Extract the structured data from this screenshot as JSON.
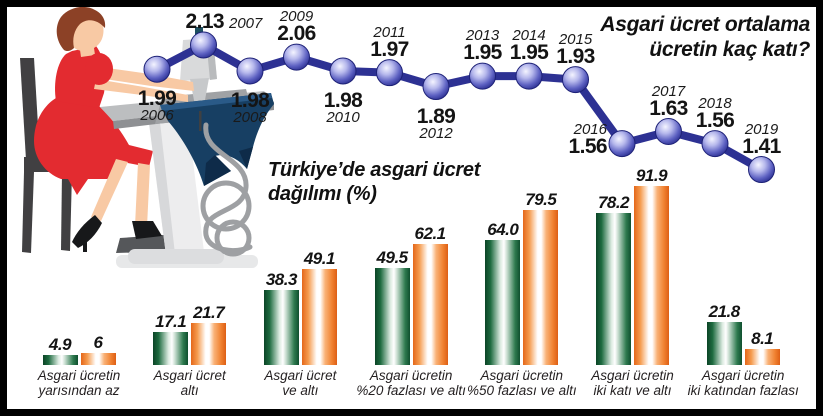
{
  "chart_data": [
    {
      "type": "line",
      "title": "Asgari ücret ortalama ücretin kaç katı?",
      "title_lines": [
        "Asgari ücret ortalama",
        "ücretin kaç katı?"
      ],
      "x": [
        "2006",
        "2007",
        "2008",
        "2009",
        "2010",
        "2011",
        "2012",
        "2013",
        "2014",
        "2015",
        "2016",
        "2017",
        "2018",
        "2019"
      ],
      "values": [
        1.99,
        2.13,
        1.98,
        2.06,
        1.98,
        1.97,
        1.89,
        1.95,
        1.95,
        1.93,
        1.56,
        1.63,
        1.56,
        1.41
      ],
      "labels": [
        "1.99",
        "2.13",
        "1.98",
        "2.06",
        "1.98",
        "1.97",
        "1.89",
        "1.95",
        "1.95",
        "1.93",
        "1.56",
        "1.63",
        "1.56",
        "1.41"
      ],
      "label_positions": [
        "below",
        "inline-above",
        "below",
        "above",
        "below",
        "above",
        "below",
        "above",
        "above",
        "above",
        "left",
        "above",
        "above",
        "above"
      ],
      "ylim": [
        1.3,
        2.2
      ],
      "grid": false,
      "legend_position": "none",
      "line_color": "#2d3193",
      "marker": "sphere"
    },
    {
      "type": "bar",
      "title": "Türkiye’de asgari ücret dağılımı (%)",
      "title_lines": [
        "Türkiye’de asgari ücret",
        "dağılımı (%)"
      ],
      "categories": [
        [
          "Asgari ücretin",
          "yarısından az"
        ],
        [
          "Asgari ücret",
          "altı"
        ],
        [
          "Asgari ücret",
          "ve altı"
        ],
        [
          "Asgari ücretin",
          "%20 fazlası ve altı"
        ],
        [
          "Asgari ücretin",
          "%50 fazlası ve altı"
        ],
        [
          "Asgari ücretin",
          "iki katı ve altı"
        ],
        [
          "Asgari ücretin",
          "iki katından fazlası"
        ]
      ],
      "series": [
        {
          "name": "green",
          "color": "#16603b",
          "values": [
            4.9,
            17.1,
            38.3,
            49.5,
            64.0,
            78.2,
            21.8
          ],
          "labels": [
            "4.9",
            "17.1",
            "38.3",
            "49.5",
            "64.0",
            "78.2",
            "21.8"
          ]
        },
        {
          "name": "orange",
          "color": "#f58634",
          "values": [
            6,
            21.7,
            49.1,
            62.1,
            79.5,
            91.9,
            8.1
          ],
          "labels": [
            "6",
            "21.7",
            "49.1",
            "62.1",
            "79.5",
            "91.9",
            "8.1"
          ]
        }
      ],
      "ylim": [
        0,
        100
      ],
      "grid": false,
      "legend_position": "none"
    }
  ]
}
